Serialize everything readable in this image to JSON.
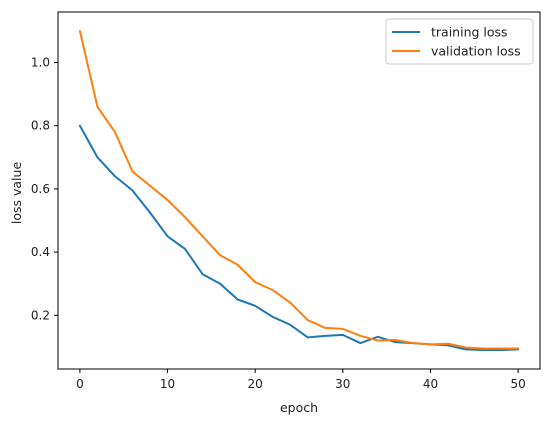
{
  "chart_data": {
    "type": "line",
    "title": "",
    "xlabel": "epoch",
    "ylabel": "loss value",
    "xlim": [
      -2.5,
      52.5
    ],
    "ylim": [
      0.03,
      1.16
    ],
    "xticks": [
      0,
      10,
      20,
      30,
      40,
      50
    ],
    "xtick_labels": [
      "0",
      "10",
      "20",
      "30",
      "40",
      "50"
    ],
    "yticks": [
      0.2,
      0.4,
      0.6,
      0.8,
      1.0
    ],
    "ytick_labels": [
      "0.2",
      "0.4",
      "0.6",
      "0.8",
      "1.0"
    ],
    "grid": false,
    "legend_position": "top-right",
    "x": [
      0,
      2,
      4,
      6,
      8,
      10,
      12,
      14,
      16,
      18,
      20,
      22,
      24,
      26,
      28,
      30,
      32,
      34,
      36,
      38,
      40,
      42,
      44,
      46,
      48,
      50
    ],
    "series": [
      {
        "name": "training loss",
        "color": "#1f77b4",
        "values": [
          0.8,
          0.7,
          0.64,
          0.595,
          0.525,
          0.45,
          0.41,
          0.33,
          0.3,
          0.25,
          0.23,
          0.195,
          0.17,
          0.13,
          0.135,
          0.138,
          0.112,
          0.132,
          0.115,
          0.112,
          0.108,
          0.105,
          0.092,
          0.09,
          0.09,
          0.092
        ]
      },
      {
        "name": "validation loss",
        "color": "#ff7f0e",
        "values": [
          1.1,
          0.86,
          0.78,
          0.655,
          0.61,
          0.565,
          0.51,
          0.45,
          0.39,
          0.36,
          0.305,
          0.28,
          0.24,
          0.185,
          0.16,
          0.157,
          0.135,
          0.12,
          0.122,
          0.112,
          0.108,
          0.11,
          0.098,
          0.095,
          0.095,
          0.095
        ]
      }
    ]
  }
}
